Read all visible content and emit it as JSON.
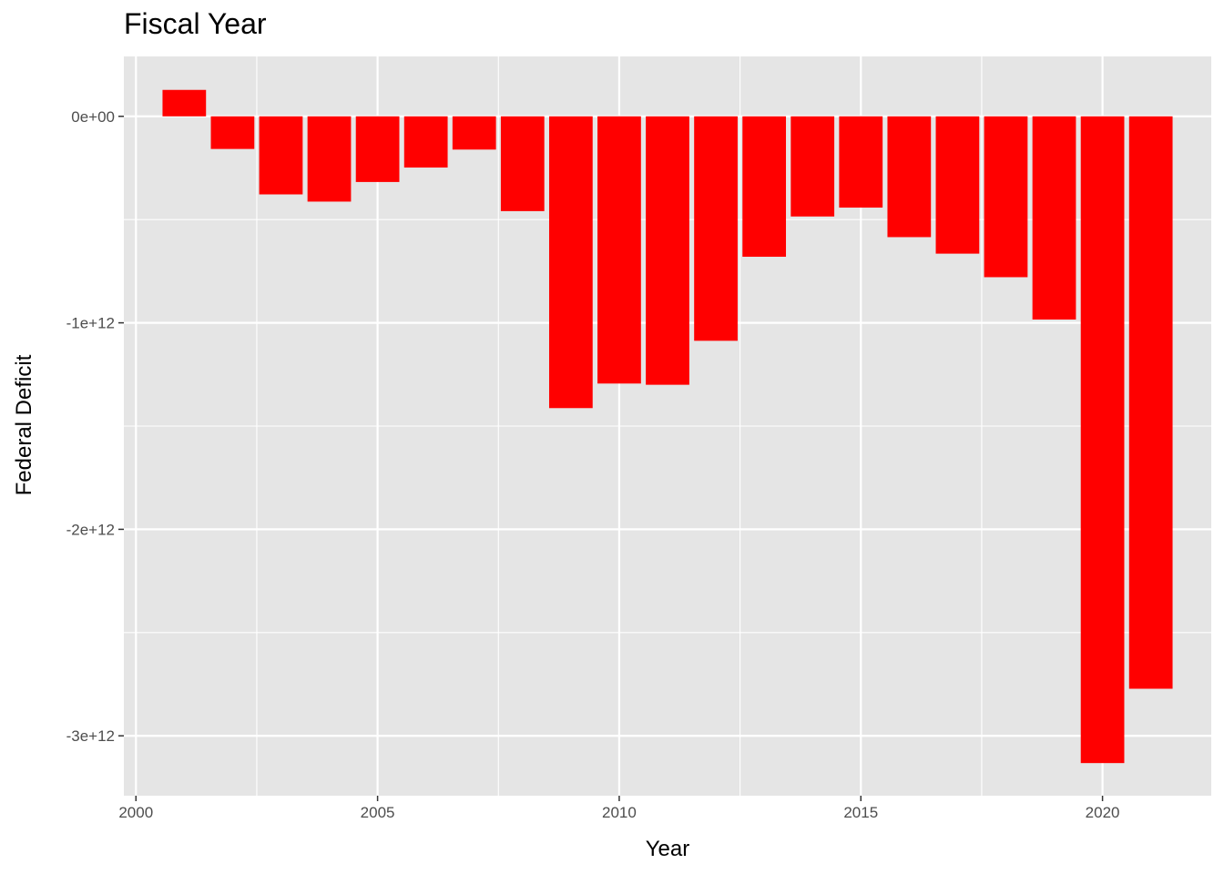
{
  "chart_data": {
    "type": "bar",
    "title": "Fiscal Year",
    "xlabel": "Year",
    "ylabel": "Federal Deficit",
    "x": [
      2001,
      2002,
      2003,
      2004,
      2005,
      2006,
      2007,
      2008,
      2009,
      2010,
      2011,
      2012,
      2013,
      2014,
      2015,
      2016,
      2017,
      2018,
      2019,
      2020,
      2021
    ],
    "values": [
      128000000000.0,
      -158000000000.0,
      -378000000000.0,
      -413000000000.0,
      -318000000000.0,
      -248000000000.0,
      -161000000000.0,
      -459000000000.0,
      -1413000000000.0,
      -1294000000000.0,
      -1300000000000.0,
      -1087000000000.0,
      -680000000000.0,
      -485000000000.0,
      -442000000000.0,
      -585000000000.0,
      -665000000000.0,
      -779000000000.0,
      -984000000000.0,
      -3132000000000.0,
      -2772000000000.0
    ],
    "xlim": [
      1999.75,
      2022.25
    ],
    "ylim": [
      -3290000000000.0,
      290000000000.0
    ],
    "x_ticks": [
      2000,
      2005,
      2010,
      2015,
      2020
    ],
    "x_tick_labels": [
      "2000",
      "2005",
      "2010",
      "2015",
      "2020"
    ],
    "y_ticks": [
      0,
      -1000000000000.0,
      -2000000000000.0,
      -3000000000000.0
    ],
    "y_tick_labels": [
      "0e+00",
      "-1e+12",
      "-2e+12",
      "-3e+12"
    ],
    "bar_color": "#ff0000",
    "panel_color": "#e5e5e5",
    "grid_color": "#ffffff",
    "grid": true,
    "legend": "none"
  }
}
